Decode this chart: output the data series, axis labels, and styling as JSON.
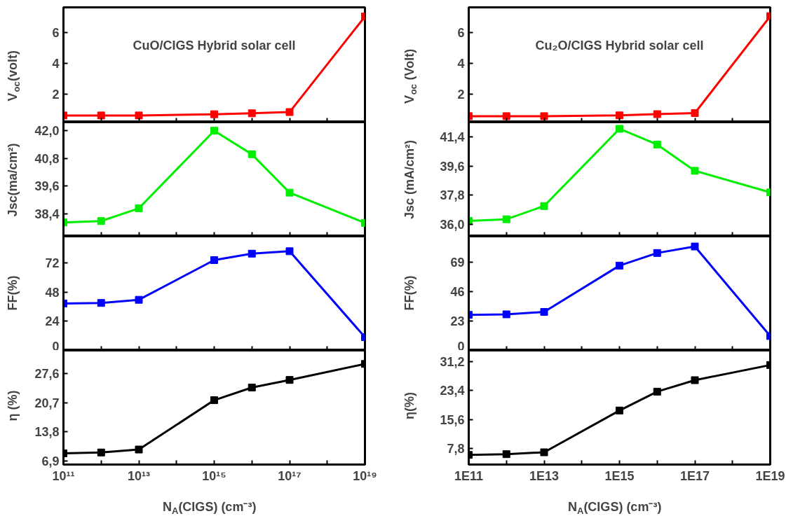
{
  "chart_data": [
    {
      "type": "line",
      "ylabel": "V$_{oc}$(volt)",
      "annotations": [
        "CuO/CIGS Hybrid solar cell"
      ],
      "marker": "square",
      "log": "x",
      "tick_labels": "y",
      "x": [
        100000000000.0,
        1000000000000.0,
        10000000000000.0,
        1000000000000000.0,
        1e+16,
        1e+17,
        1e+19
      ],
      "series": [
        {
          "color": "#ff0000",
          "values": [
            0.6,
            0.6,
            0.6,
            0.68,
            0.74,
            0.82,
            7.06
          ]
        }
      ],
      "xlim": [
        100000000000.0,
        1e+19
      ],
      "xticks": [
        {
          "value": 100000000000.0,
          "label": null
        },
        {
          "value": 1000000000000.0,
          "label": null
        },
        {
          "value": 10000000000000.0,
          "label": null
        },
        {
          "value": 100000000000000.0,
          "label": null
        },
        {
          "value": 1000000000000000.0,
          "label": null
        },
        {
          "value": 1e+16,
          "label": null
        },
        {
          "value": 1e+17,
          "label": null
        },
        {
          "value": 1e+18,
          "label": null
        },
        {
          "value": 1e+19,
          "label": null
        }
      ],
      "ylim": [
        0.16,
        7.66
      ],
      "yticks": [
        2,
        4,
        6
      ]
    },
    {
      "type": "line",
      "ylabel": "Jsc(ma/cm²)",
      "marker": "square",
      "log": "x",
      "tick_labels": "y",
      "x": [
        100000000000.0,
        1000000000000.0,
        10000000000000.0,
        1000000000000000.0,
        1e+16,
        1e+17,
        1e+19
      ],
      "series": [
        {
          "color": "#00ee00",
          "values": [
            38.03,
            38.09,
            38.64,
            42.0,
            40.98,
            39.32,
            38.01
          ]
        }
      ],
      "xlim": [
        100000000000.0,
        1e+19
      ],
      "xticks": [
        {
          "value": 100000000000.0,
          "label": null
        },
        {
          "value": 1000000000000.0,
          "label": null
        },
        {
          "value": 10000000000000.0,
          "label": null
        },
        {
          "value": 100000000000000.0,
          "label": null
        },
        {
          "value": 1000000000000000.0,
          "label": null
        },
        {
          "value": 1e+16,
          "label": null
        },
        {
          "value": 1e+17,
          "label": null
        },
        {
          "value": 1e+18,
          "label": null
        },
        {
          "value": 1e+19,
          "label": null
        }
      ],
      "ylim": [
        37.43,
        42.37
      ],
      "yticks": [
        {
          "value": 38.4,
          "label": "38,4"
        },
        {
          "value": 39.6,
          "label": "39,6"
        },
        {
          "value": 40.8,
          "label": "40,8"
        },
        {
          "value": 42.0,
          "label": "42,0"
        }
      ]
    },
    {
      "type": "line",
      "ylabel": "FF(%)",
      "marker": "square",
      "log": "x",
      "tick_labels": "y",
      "x": [
        100000000000.0,
        1000000000000.0,
        10000000000000.0,
        1000000000000000.0,
        1e+16,
        1e+17,
        1e+19
      ],
      "series": [
        {
          "color": "#0000ff",
          "values": [
            38.7,
            39.1,
            41.7,
            74.4,
            79.7,
            81.7,
            10.9
          ]
        }
      ],
      "xlim": [
        100000000000.0,
        1e+19
      ],
      "xticks": [
        {
          "value": 100000000000.0,
          "label": null
        },
        {
          "value": 1000000000000.0,
          "label": null
        },
        {
          "value": 10000000000000.0,
          "label": null
        },
        {
          "value": 100000000000000.0,
          "label": null
        },
        {
          "value": 1000000000000000.0,
          "label": null
        },
        {
          "value": 1e+16,
          "label": null
        },
        {
          "value": 1e+17,
          "label": null
        },
        {
          "value": 1e+18,
          "label": null
        },
        {
          "value": 1e+19,
          "label": null
        }
      ],
      "ylim": [
        0,
        94
      ],
      "yticks": [
        0,
        24,
        48,
        72
      ]
    },
    {
      "type": "line",
      "ylabel": "η (%)",
      "xlabel": "N$_{A}$(CIGS) (cm⁻³)",
      "marker": "square",
      "log": "x",
      "x": [
        100000000000.0,
        1000000000000.0,
        10000000000000.0,
        1000000000000000.0,
        1e+16,
        1e+17,
        1e+19
      ],
      "series": [
        {
          "color": "#000000",
          "values": [
            8.7,
            8.9,
            9.6,
            21.3,
            24.3,
            26.1,
            29.9
          ]
        }
      ],
      "xlim": [
        100000000000.0,
        1e+19
      ],
      "xticks": [
        {
          "value": 100000000000.0,
          "label": "10¹¹"
        },
        {
          "value": 1000000000000.0,
          "label": null
        },
        {
          "value": 10000000000000.0,
          "label": "10¹³"
        },
        {
          "value": 100000000000000.0,
          "label": null
        },
        {
          "value": 1000000000000000.0,
          "label": "10¹⁵"
        },
        {
          "value": 1e+16,
          "label": null
        },
        {
          "value": 1e+17,
          "label": "10¹⁷"
        },
        {
          "value": 1e+18,
          "label": null
        },
        {
          "value": 1e+19,
          "label": "10¹⁹"
        }
      ],
      "ylim": [
        6.04,
        33.1
      ],
      "yticks": [
        {
          "value": 6.9,
          "label": "6,9"
        },
        {
          "value": 13.8,
          "label": "13,8"
        },
        {
          "value": 20.7,
          "label": "20,7"
        },
        {
          "value": 27.6,
          "label": "27,6"
        }
      ]
    },
    {
      "type": "line",
      "ylabel": "V$_{oc}$ (Volt)",
      "annotations": [
        "Cu₂O/CIGS Hybrid solar cell"
      ],
      "marker": "square",
      "log": "x",
      "tick_labels": "y",
      "x": [
        100000000000.0,
        1000000000000.0,
        10000000000000.0,
        1000000000000000.0,
        1e+16,
        1e+17,
        1e+19
      ],
      "series": [
        {
          "color": "#ff0000",
          "values": [
            0.6,
            0.6,
            0.6,
            0.65,
            0.73,
            0.8,
            7.06
          ]
        }
      ],
      "xlim": [
        100000000000.0,
        1e+19
      ],
      "xticks": [
        {
          "value": 100000000000.0,
          "label": null
        },
        {
          "value": 1000000000000.0,
          "label": null
        },
        {
          "value": 10000000000000.0,
          "label": null
        },
        {
          "value": 100000000000000.0,
          "label": null
        },
        {
          "value": 1000000000000000.0,
          "label": null
        },
        {
          "value": 1e+16,
          "label": null
        },
        {
          "value": 1e+17,
          "label": null
        },
        {
          "value": 1e+18,
          "label": null
        },
        {
          "value": 1e+19,
          "label": null
        }
      ],
      "ylim": [
        0.21,
        7.63
      ],
      "yticks": [
        2,
        4,
        6
      ]
    },
    {
      "type": "line",
      "ylabel": "Jsc (mA/cm²)",
      "marker": "square",
      "log": "x",
      "tick_labels": "y",
      "x": [
        100000000000.0,
        1000000000000.0,
        10000000000000.0,
        1000000000000000.0,
        1e+16,
        1e+17,
        1e+19
      ],
      "series": [
        {
          "color": "#00ee00",
          "values": [
            36.2,
            36.3,
            37.12,
            41.92,
            40.94,
            39.31,
            37.97
          ]
        }
      ],
      "xlim": [
        100000000000.0,
        1e+19
      ],
      "xticks": [
        {
          "value": 100000000000.0,
          "label": null
        },
        {
          "value": 1000000000000.0,
          "label": null
        },
        {
          "value": 10000000000000.0,
          "label": null
        },
        {
          "value": 100000000000000.0,
          "label": null
        },
        {
          "value": 1000000000000000.0,
          "label": null
        },
        {
          "value": 1e+16,
          "label": null
        },
        {
          "value": 1e+17,
          "label": null
        },
        {
          "value": 1e+18,
          "label": null
        },
        {
          "value": 1e+19,
          "label": null
        }
      ],
      "ylim": [
        35.24,
        42.33
      ],
      "yticks": [
        {
          "value": 36.0,
          "label": "36,0"
        },
        {
          "value": 37.8,
          "label": "37,8"
        },
        {
          "value": 39.6,
          "label": "39,6"
        },
        {
          "value": 41.4,
          "label": "41,4"
        }
      ]
    },
    {
      "type": "line",
      "ylabel": "FF(%)",
      "marker": "square",
      "log": "x",
      "tick_labels": "y",
      "x": [
        100000000000.0,
        1000000000000.0,
        10000000000000.0,
        1000000000000000.0,
        1e+16,
        1e+17,
        1e+19
      ],
      "series": [
        {
          "color": "#0000ff",
          "values": [
            27.9,
            28.3,
            30.2,
            66.5,
            76.4,
            81.5,
            11.3
          ]
        }
      ],
      "xlim": [
        100000000000.0,
        1e+19
      ],
      "xticks": [
        {
          "value": 100000000000.0,
          "label": null
        },
        {
          "value": 1000000000000.0,
          "label": null
        },
        {
          "value": 10000000000000.0,
          "label": null
        },
        {
          "value": 100000000000000.0,
          "label": null
        },
        {
          "value": 1000000000000000.0,
          "label": null
        },
        {
          "value": 1e+16,
          "label": null
        },
        {
          "value": 1e+17,
          "label": null
        },
        {
          "value": 1e+18,
          "label": null
        },
        {
          "value": 1e+19,
          "label": null
        }
      ],
      "ylim": [
        0,
        89.5
      ],
      "yticks": [
        0,
        23,
        46,
        69
      ]
    },
    {
      "type": "line",
      "ylabel": "η(%)",
      "xlabel": "N$_{A}$(CIGS) (cm⁻³)",
      "marker": "square",
      "log": "x",
      "x": [
        100000000000.0,
        1000000000000.0,
        10000000000000.0,
        1000000000000000.0,
        1e+16,
        1e+17,
        1e+19
      ],
      "series": [
        {
          "color": "#000000",
          "values": [
            6.0,
            6.2,
            6.7,
            18.0,
            23.1,
            26.2,
            30.3
          ]
        }
      ],
      "xlim": [
        100000000000.0,
        1e+19
      ],
      "xticks": [
        {
          "value": 100000000000.0,
          "label": "1E11"
        },
        {
          "value": 1000000000000.0,
          "label": null
        },
        {
          "value": 10000000000000.0,
          "label": "1E13"
        },
        {
          "value": 100000000000000.0,
          "label": null
        },
        {
          "value": 1000000000000000.0,
          "label": "1E15"
        },
        {
          "value": 1e+16,
          "label": null
        },
        {
          "value": 1e+17,
          "label": "1E17"
        },
        {
          "value": 1e+18,
          "label": null
        },
        {
          "value": 1e+19,
          "label": "1E19"
        }
      ],
      "ylim": [
        3.39,
        34.25
      ],
      "yticks": [
        {
          "value": 7.8,
          "label": "7,8"
        },
        {
          "value": 15.6,
          "label": "15,6"
        },
        {
          "value": 23.4,
          "label": "23,4"
        },
        {
          "value": 31.2,
          "label": "31,2"
        }
      ]
    }
  ]
}
